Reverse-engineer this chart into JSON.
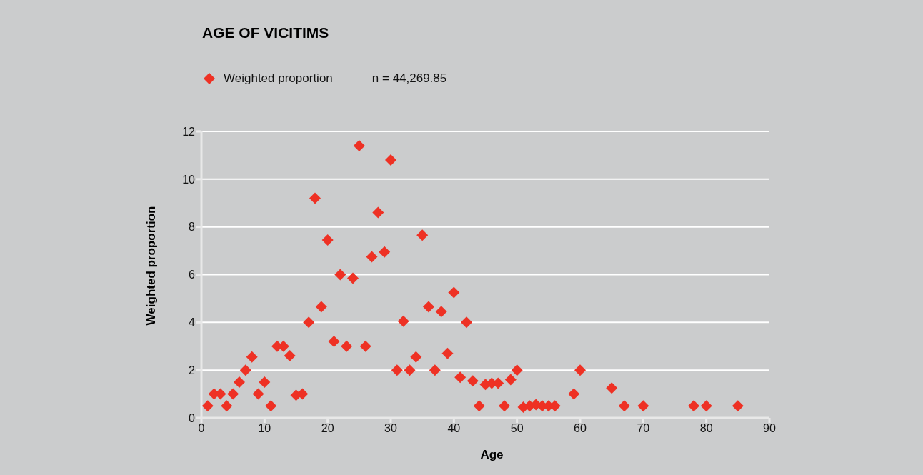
{
  "chart_data": {
    "type": "scatter",
    "title": "AGE OF VICITIMS",
    "xlabel": "Age",
    "ylabel": "Weighted proportion",
    "annotations": [
      "n = 44,269.85"
    ],
    "x": [
      1,
      2,
      3,
      4,
      5,
      6,
      7,
      8,
      9,
      10,
      11,
      12,
      13,
      14,
      15,
      16,
      17,
      18,
      19,
      20,
      21,
      22,
      23,
      24,
      25,
      26,
      27,
      28,
      29,
      30,
      31,
      32,
      33,
      34,
      35,
      36,
      37,
      38,
      39,
      40,
      41,
      42,
      43,
      44,
      45,
      46,
      47,
      48,
      49,
      50,
      51,
      52,
      53,
      54,
      55,
      56,
      59,
      60,
      65,
      67,
      70,
      78,
      80,
      85
    ],
    "series": [
      {
        "name": "Weighted proportion",
        "color": "#ee3124",
        "values": [
          0.5,
          1.0,
          1.0,
          0.5,
          1.0,
          1.5,
          2.0,
          2.55,
          1.0,
          1.5,
          0.5,
          3.0,
          3.0,
          2.6,
          0.95,
          1.0,
          4.0,
          9.2,
          4.65,
          7.45,
          3.2,
          6.0,
          3.0,
          5.85,
          11.4,
          3.0,
          6.75,
          8.6,
          6.95,
          10.8,
          2.0,
          4.05,
          2.0,
          2.55,
          7.65,
          4.65,
          2.0,
          4.45,
          2.7,
          5.25,
          1.7,
          4.0,
          1.55,
          0.5,
          1.4,
          1.45,
          1.45,
          0.5,
          1.6,
          2.0,
          0.45,
          0.5,
          0.55,
          0.5,
          0.5,
          0.5,
          1.0,
          2.0,
          1.25,
          0.5,
          0.5,
          0.5,
          0.5,
          0.5
        ]
      }
    ],
    "xlim": [
      0,
      90
    ],
    "xticks": [
      0,
      10,
      20,
      30,
      40,
      50,
      60,
      70,
      80,
      90
    ],
    "ylim": [
      0,
      12
    ],
    "yticks": [
      0,
      2,
      4,
      6,
      8,
      10,
      12
    ],
    "grid": "y",
    "legend": "top left",
    "marker": "diamond"
  }
}
